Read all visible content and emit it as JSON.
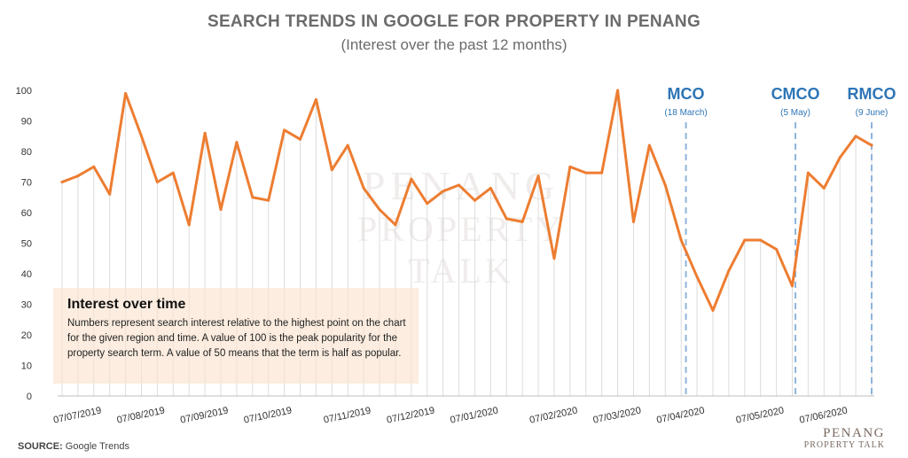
{
  "header": {
    "title": "SEARCH TRENDS IN GOOGLE FOR PROPERTY IN PENANG",
    "subtitle": "(Interest over the past 12 months)"
  },
  "info_box": {
    "title": "Interest over time",
    "body": "Numbers represent search interest relative to the highest point on the chart for the given region and time. A value of 100 is the peak popularity for the property search term. A value of 50 means that the term is half as popular."
  },
  "footer": {
    "source_label": "SOURCE:",
    "source_value": "Google Trends"
  },
  "logo": {
    "top": "PENANG",
    "bottom": "PROPERTY TALK"
  },
  "watermark": {
    "top": "PENANG",
    "bottom": "PROPERTY TALK"
  },
  "chart_data": {
    "type": "line",
    "title": "SEARCH TRENDS IN GOOGLE FOR PROPERTY IN PENANG",
    "subtitle": "(Interest over the past 12 months)",
    "xlabel": "",
    "ylabel": "",
    "ylim": [
      0,
      100
    ],
    "yticks": [
      0,
      10,
      20,
      30,
      40,
      50,
      60,
      70,
      80,
      90,
      100
    ],
    "grid": "vertical",
    "line_color": "#ed7d31",
    "x_tick_labels": [
      "07/07/2019",
      "07/08/2019",
      "07/09/2019",
      "07/10/2019",
      "07/11/2019",
      "07/12/2019",
      "07/01/2020",
      "07/02/2020",
      "07/03/2020",
      "07/04/2020",
      "07/05/2020",
      "07/06/2020"
    ],
    "x_tick_indices": [
      1,
      5,
      9,
      13,
      18,
      22,
      26,
      31,
      35,
      39,
      44,
      48
    ],
    "series": [
      {
        "values": [
          70,
          72,
          75,
          66,
          99,
          85,
          70,
          73,
          56,
          86,
          61,
          83,
          65,
          64,
          87,
          84,
          97,
          74,
          82,
          68,
          61,
          56,
          71,
          63,
          67,
          69,
          64,
          68,
          58,
          57,
          72,
          45,
          75,
          73,
          73,
          100,
          57,
          82,
          69,
          51,
          39,
          28,
          41,
          51,
          51,
          48,
          36,
          73,
          68,
          78,
          85,
          82
        ]
      }
    ],
    "annotations": [
      {
        "label": "MCO",
        "sub": "(18 March)",
        "index": 39.3,
        "color": "#2e75b6"
      },
      {
        "label": "CMCO",
        "sub": "(5 May)",
        "index": 46.2,
        "color": "#2e75b6"
      },
      {
        "label": "RMCO",
        "sub": "(9 June)",
        "index": 51,
        "color": "#2e75b6"
      }
    ]
  }
}
